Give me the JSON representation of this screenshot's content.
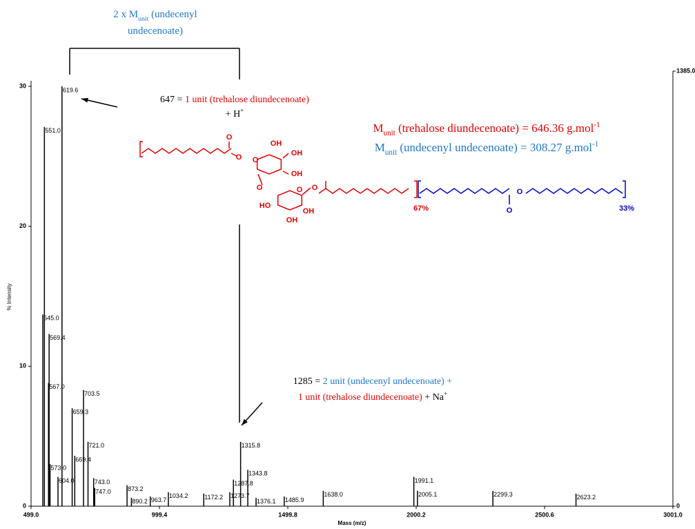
{
  "chart_data": {
    "type": "spectrum",
    "x_label": "Mass (m/z)",
    "y_label": "% Intensity",
    "color": "#000000",
    "x": [
      545.0,
      551.0,
      567.0,
      569.4,
      573.0,
      604.0,
      619.6,
      659.3,
      669.4,
      703.5,
      721.0,
      743.0,
      747.0,
      873.2,
      890.2,
      963.7,
      1034.2,
      1172.2,
      1273.7,
      1287.8,
      1315.8,
      1343.8,
      1376.1,
      1485.9,
      1638.0,
      1991.1,
      2005.1,
      2299.3,
      2623.2
    ],
    "values": [
      13.7,
      27.1,
      8.8,
      12.3,
      3.0,
      2.1,
      30.0,
      7.0,
      3.6,
      8.3,
      4.6,
      2.0,
      1.3,
      1.5,
      0.6,
      0.7,
      1.0,
      0.9,
      1.0,
      1.9,
      4.6,
      2.6,
      0.6,
      0.7,
      1.1,
      2.1,
      1.1,
      1.1,
      0.9
    ],
    "labels": [
      "545.0",
      "551.0",
      "567.0",
      "569.4",
      "573.0",
      "604.0",
      "619.6",
      "659.3",
      "669.4",
      "703.5",
      "721.0",
      "743.0",
      "747.0",
      "873.2",
      "890.2",
      "963.7",
      "1034.2",
      "1172.2",
      "1273.7",
      "1287.8",
      "1315.8",
      "1343.8",
      "1376.1",
      "1485.9",
      "1638.0",
      "1991.1",
      "2005.1",
      "2299.3",
      "2623.2"
    ],
    "xlim": [
      499,
      3001
    ],
    "xticks": [
      {
        "value": 499,
        "label": "499.0"
      },
      {
        "value": 999.4,
        "label": "999.4"
      },
      {
        "value": 1499.8,
        "label": "1499.8"
      },
      {
        "value": 2000.2,
        "label": "2000.2"
      },
      {
        "value": 2500.6,
        "label": "2500.6"
      },
      {
        "value": 3001,
        "label": "3001.0"
      }
    ],
    "ylim": [
      0,
      30
    ],
    "yticks": [
      0,
      10,
      20,
      30
    ],
    "y2lim": [
      0,
      1385
    ],
    "y2ticks": [
      0,
      {
        "value": 1385,
        "label": "1385.0"
      }
    ]
  },
  "annotations": [
    {
      "lines": [
        [
          {
            "text": "2 x M",
            "color": "#1f78c8"
          },
          {
            "text": "unit",
            "color": "#1f78c8",
            "shift": "sub"
          },
          {
            "text": " (undecenyl",
            "color": "#1f78c8"
          }
        ],
        [
          {
            "text": "undecenoate)",
            "color": "#1f78c8"
          }
        ]
      ]
    },
    {
      "lines": [
        [
          {
            "text": "647 = ",
            "color": "#000000"
          },
          {
            "text": "1 unit (trehalose diundecenoate)",
            "color": "#e00000"
          }
        ],
        [
          {
            "text": "+ H",
            "color": "#000000"
          },
          {
            "text": "+",
            "color": "#000000",
            "shift": "super"
          }
        ]
      ]
    },
    {
      "lines": [
        [
          {
            "text": "M",
            "color": "#e00000"
          },
          {
            "text": "unit",
            "color": "#e00000",
            "shift": "sub"
          },
          {
            "text": " (trehalose diundecenoate) = 646.36 g.mol",
            "color": "#e00000"
          },
          {
            "text": "-1",
            "color": "#e00000",
            "shift": "super"
          }
        ],
        [
          {
            "text": "M",
            "color": "#1f78c8"
          },
          {
            "text": "unit",
            "color": "#1f78c8",
            "shift": "sub"
          },
          {
            "text": " (undecenyl undecenoate) = 308.27 g.mol",
            "color": "#1f78c8"
          },
          {
            "text": "-1",
            "color": "#1f78c8",
            "shift": "super"
          }
        ]
      ]
    },
    {
      "lines": [
        [
          {
            "text": "1285 = ",
            "color": "#000000"
          },
          {
            "text": "2 unit (undecenyl undecenoate) +",
            "color": "#1f78c8"
          }
        ],
        [
          {
            "text": "1 unit (trehalose diundecenoate)",
            "color": "#e00000"
          },
          {
            "text": " + Na",
            "color": "#000000"
          },
          {
            "text": "+",
            "color": "#000000",
            "shift": "super"
          }
        ]
      ]
    }
  ],
  "structure": {
    "atoms": [
      "O",
      "O",
      "OH",
      "OH",
      "OH",
      "O",
      "O",
      "HO",
      "OH",
      "OH",
      "O",
      "O",
      "O",
      "O"
    ],
    "fractions": [
      "67%",
      "33%"
    ]
  }
}
